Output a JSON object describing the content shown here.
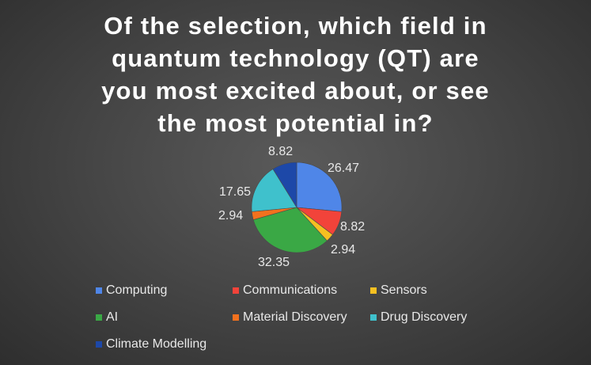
{
  "chart_data": {
    "type": "pie",
    "title": "Of the selection, which field in quantum technology (QT) are you most excited about, or see the most potential in?",
    "title_lines": [
      "Of the selection, which field in",
      "quantum technology (QT) are",
      "you most excited about, or see",
      "the most potential in?"
    ],
    "categories": [
      "Computing",
      "Communications",
      "Sensors",
      "AI",
      "Material Discovery",
      "Drug Discovery",
      "Climate Modelling"
    ],
    "values": [
      26.47,
      8.82,
      2.94,
      32.35,
      2.94,
      17.65,
      8.82
    ],
    "value_labels": [
      "26.47",
      "8.82",
      "2.94",
      "32.35",
      "2.94",
      "17.65",
      "8.82"
    ],
    "colors": [
      "#4f86e8",
      "#f2433a",
      "#f5c021",
      "#3aa845",
      "#f2711e",
      "#3fc1cc",
      "#1d48a8"
    ],
    "legend_position": "bottom",
    "start_angle_deg": 0,
    "direction": "clockwise"
  }
}
